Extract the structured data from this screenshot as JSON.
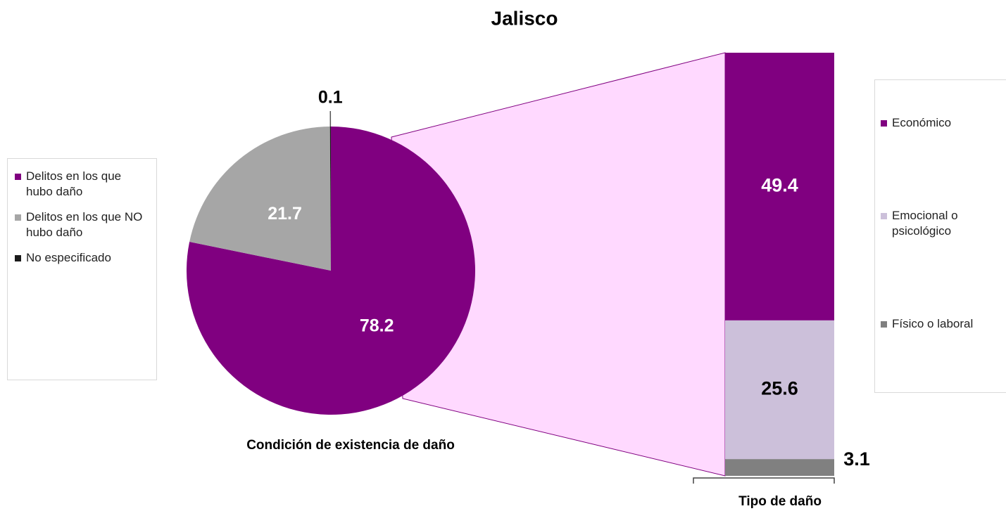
{
  "chart_data": [
    {
      "type": "pie",
      "title": "Jalisco",
      "xlabel": "Condición de existencia de daño",
      "categories": [
        "Delitos en los que hubo daño",
        "Delitos en los que NO hubo daño",
        "No especificado"
      ],
      "values": [
        78.2,
        21.7,
        0.1
      ],
      "colors": [
        "#800080",
        "#a6a6a6",
        "#1a1a1a"
      ],
      "label_colors": [
        "#ffffff",
        "#ffffff",
        "#000000"
      ]
    },
    {
      "type": "bar",
      "xlabel": "Tipo de daño",
      "series": [
        {
          "name": "Económico",
          "color": "#800080",
          "values": [
            49.4
          ],
          "label_color": "#ffffff"
        },
        {
          "name": "Emocional o psicológico",
          "color": "#ccc0da",
          "values": [
            25.6
          ],
          "label_color": "#000000"
        },
        {
          "name": "Físico o laboral",
          "color": "#808080",
          "values": [
            3.1
          ],
          "label_color": "#000000"
        }
      ]
    }
  ]
}
